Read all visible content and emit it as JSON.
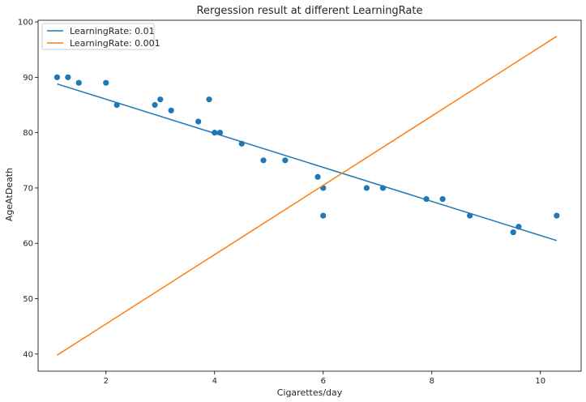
{
  "chart_data": {
    "type": "scatter",
    "title": "Rergession result at different LearningRate",
    "xlabel": "Cigarettes/day",
    "ylabel": "AgeAtDeath",
    "xlim": [
      0.75,
      10.75
    ],
    "ylim": [
      36.9,
      100.3
    ],
    "xticks": [
      2,
      4,
      6,
      8,
      10
    ],
    "yticks": [
      40,
      50,
      60,
      70,
      80,
      90,
      100
    ],
    "grid": false,
    "legend_position": "top-left",
    "points": {
      "color": "#1f77b4",
      "x": [
        1.1,
        1.3,
        1.5,
        2.0,
        2.2,
        2.9,
        3.0,
        3.2,
        3.7,
        3.9,
        4.0,
        4.1,
        4.5,
        4.9,
        5.3,
        5.9,
        6.0,
        6.0,
        6.8,
        7.1,
        7.9,
        8.2,
        8.7,
        9.5,
        9.6,
        10.3
      ],
      "y": [
        90,
        90,
        89,
        89,
        85,
        85,
        86,
        84,
        82,
        86,
        80,
        80,
        78,
        75,
        75,
        72,
        70,
        65,
        70,
        70,
        68,
        68,
        65,
        62,
        63,
        65
      ]
    },
    "series": [
      {
        "name": "LearningRate: 0.01",
        "color": "#1f77b4",
        "x": [
          1.1,
          10.3
        ],
        "y": [
          88.8,
          60.5
        ]
      },
      {
        "name": "LearningRate: 0.001",
        "color": "#ff7f0e",
        "x": [
          1.1,
          10.3
        ],
        "y": [
          39.8,
          97.4
        ]
      }
    ]
  }
}
